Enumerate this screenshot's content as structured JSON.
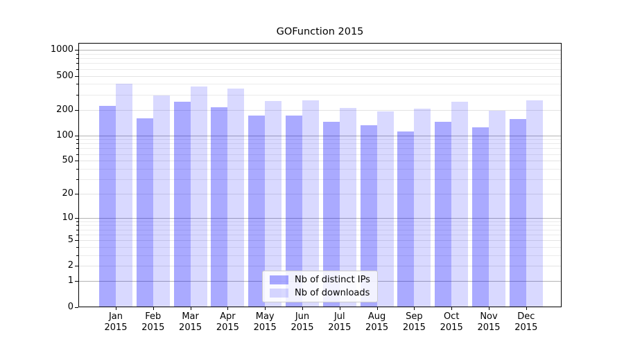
{
  "title": "GOFunction 2015",
  "chart_data": {
    "type": "bar",
    "title": "GOFunction 2015",
    "categories": [
      "Jan 2015",
      "Feb 2015",
      "Mar 2015",
      "Apr 2015",
      "May 2015",
      "Jun 2015",
      "Jul 2015",
      "Aug 2015",
      "Sep 2015",
      "Oct 2015",
      "Nov 2015",
      "Dec 2015"
    ],
    "months": [
      "Jan",
      "Feb",
      "Mar",
      "Apr",
      "May",
      "Jun",
      "Jul",
      "Aug",
      "Sep",
      "Oct",
      "Nov",
      "Dec"
    ],
    "year_label": "2015",
    "series": [
      {
        "name": "Nb of distinct IPs",
        "color": "rgba(0,0,255,0.335)",
        "values": [
          220,
          158,
          246,
          212,
          170,
          170,
          143,
          131,
          111,
          142,
          123,
          154
        ]
      },
      {
        "name": "Nb of downloads",
        "color": "rgba(0,0,255,0.148)",
        "values": [
          400,
          290,
          370,
          350,
          251,
          256,
          208,
          190,
          204,
          248,
          193,
          256
        ]
      }
    ],
    "yscale": "log1p",
    "ylim": [
      0,
      1250
    ],
    "y_tick_labels": [
      "1000",
      "500",
      "200",
      "100",
      "50",
      "20",
      "10",
      "5",
      "2",
      "1",
      "0"
    ],
    "y_tick_values": [
      1000,
      500,
      200,
      100,
      50,
      20,
      10,
      5,
      2,
      1,
      0
    ],
    "y_decade_gridlines": [
      1,
      10,
      100,
      1000
    ],
    "y_major_gridlines": [
      2,
      5,
      20,
      50,
      200,
      500
    ],
    "y_minor_gridlines": [
      3,
      4,
      6,
      7,
      8,
      9,
      30,
      40,
      60,
      70,
      80,
      90,
      300,
      400,
      600,
      700,
      800,
      900
    ],
    "grid": true,
    "legend_position": "lower-center"
  },
  "legend": {
    "items": [
      {
        "label": "Nb of distinct IPs",
        "color": "rgba(0,0,255,0.335)"
      },
      {
        "label": "Nb of downloads",
        "color": "rgba(0,0,255,0.148)"
      }
    ]
  },
  "colors": {
    "bar_distinct_ips": "rgba(0,0,255,0.335)",
    "bar_downloads": "rgba(0,0,255,0.148)",
    "grid_decade": "#b3b3b3",
    "grid_major": "#e3e3e3",
    "grid_minor": "#ebebeb",
    "axis": "#000000",
    "background": "#ffffff"
  }
}
